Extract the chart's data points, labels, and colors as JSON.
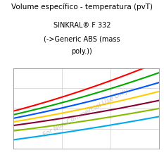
{
  "title_line1": "SINKRAL® F 332",
  "title_line2": "(->Generic ABS (mass",
  "title_line3": "poly.))",
  "background_color": "#ffffff",
  "watermark": "For Non-Commercial Use Only",
  "line_params": [
    {
      "color": "#ff0000",
      "y0": 0.62,
      "y1": 1.05,
      "curve": 0.12
    },
    {
      "color": "#00aa00",
      "y0": 0.58,
      "y1": 0.95,
      "curve": 0.1
    },
    {
      "color": "#0055ff",
      "y0": 0.54,
      "y1": 0.86,
      "curve": 0.08
    },
    {
      "color": "#ffcc00",
      "y0": 0.5,
      "y1": 0.77,
      "curve": 0.07
    },
    {
      "color": "#880033",
      "y0": 0.46,
      "y1": 0.68,
      "curve": 0.06
    },
    {
      "color": "#88bb00",
      "y0": 0.4,
      "y1": 0.6,
      "curve": 0.05
    },
    {
      "color": "#00aaee",
      "y0": 0.3,
      "y1": 0.52,
      "curve": 0.04
    }
  ],
  "title_fontsize": 7.0,
  "suptitle": "Volume específico - temperatura (pvT)",
  "suptitle_fontsize": 7.5,
  "watermark_fontsize": 6.5,
  "linewidth": 1.5,
  "xlim": [
    0,
    1
  ],
  "ylim": [
    0.2,
    1.1
  ],
  "xticks": [
    0.0,
    0.333,
    0.667,
    1.0
  ],
  "yticks": [
    0.2,
    0.425,
    0.65,
    0.875,
    1.1
  ]
}
